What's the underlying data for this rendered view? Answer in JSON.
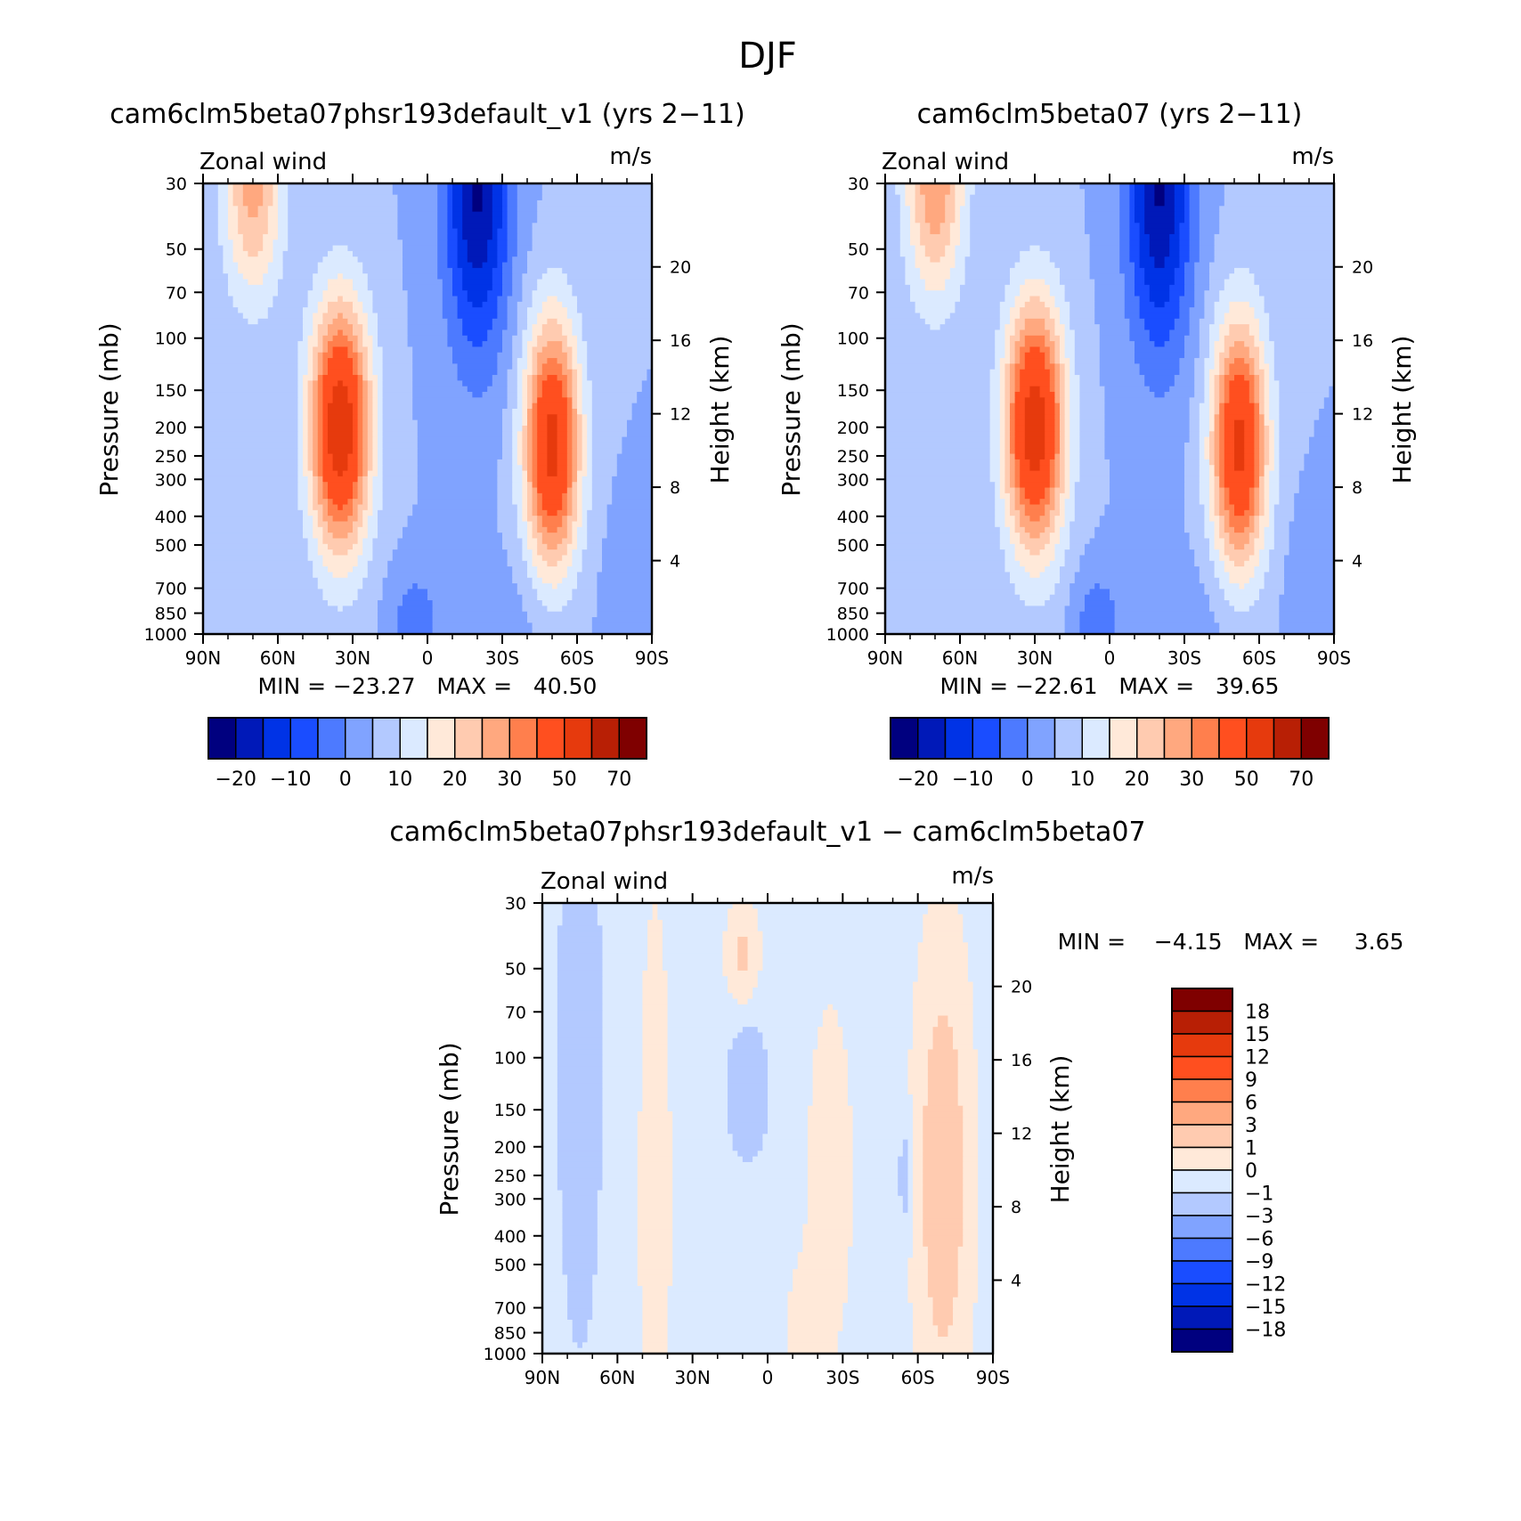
{
  "page_title": "DJF",
  "colors": {
    "full": [
      "#00007f",
      "#0019b8",
      "#0033e6",
      "#1a4dff",
      "#4d7aff",
      "#80a3ff",
      "#b3c9ff",
      "#dbeaff",
      "#ffe9d9",
      "#ffcbb0",
      "#ffa87f",
      "#ff7f4d",
      "#ff4f1f",
      "#e63a0d",
      "#b81f05",
      "#7f0000"
    ],
    "diff": [
      "#00007f",
      "#0019b8",
      "#0033e6",
      "#1a4dff",
      "#4d7aff",
      "#80a3ff",
      "#b3c9ff",
      "#dbeaff",
      "#ffe9d9",
      "#ffcbb0",
      "#ffa87f",
      "#ff7f4d",
      "#ff4f1f",
      "#e63a0d",
      "#b81f05",
      "#7f0000"
    ]
  },
  "chart_data": [
    {
      "type": "heatmap",
      "title": "cam6clm5beta07phsr193default_v1 (yrs 2−11)",
      "variable": "Zonal wind",
      "units": "m/s",
      "xlabel": "",
      "ylabel": "Pressure (mb)",
      "ylabel_right": "Height (km)",
      "x_ticks": [
        "90N",
        "60N",
        "30N",
        "0",
        "30S",
        "60S",
        "90S"
      ],
      "y_ticks": [
        30,
        50,
        70,
        100,
        150,
        200,
        250,
        300,
        400,
        500,
        700,
        850,
        1000
      ],
      "y_right_ticks": [
        20,
        16,
        12,
        8,
        4
      ],
      "ylim": [
        1000,
        30
      ],
      "stats": "MIN = −23.27   MAX =   40.50",
      "min": -23.27,
      "max": 40.5,
      "colorbar_labels": [
        "−20",
        "−10",
        "0",
        "10",
        "20",
        "30",
        "50",
        "70"
      ],
      "jets": [
        {
          "lat": 35,
          "p": 200,
          "peak": 40.5
        },
        {
          "lat": -50,
          "p": 230,
          "peak": 36
        },
        {
          "lat": 70,
          "p": 30,
          "peak": 22
        },
        {
          "lat": -20,
          "p": 30,
          "peak": -23
        }
      ]
    },
    {
      "type": "heatmap",
      "title": "cam6clm5beta07 (yrs 2−11)",
      "variable": "Zonal wind",
      "units": "m/s",
      "xlabel": "",
      "ylabel": "Pressure (mb)",
      "ylabel_right": "Height (km)",
      "x_ticks": [
        "90N",
        "60N",
        "30N",
        "0",
        "30S",
        "60S",
        "90S"
      ],
      "y_ticks": [
        30,
        50,
        70,
        100,
        150,
        200,
        250,
        300,
        400,
        500,
        700,
        850,
        1000
      ],
      "y_right_ticks": [
        20,
        16,
        12,
        8,
        4
      ],
      "ylim": [
        1000,
        30
      ],
      "stats": "MIN = −22.61   MAX =   39.65",
      "min": -22.61,
      "max": 39.65,
      "colorbar_labels": [
        "−20",
        "−10",
        "0",
        "10",
        "20",
        "30",
        "50",
        "70"
      ],
      "jets": [
        {
          "lat": 30,
          "p": 200,
          "peak": 39.6
        },
        {
          "lat": -52,
          "p": 230,
          "peak": 35
        },
        {
          "lat": 70,
          "p": 30,
          "peak": 24
        },
        {
          "lat": -20,
          "p": 30,
          "peak": -22.6
        }
      ]
    },
    {
      "type": "heatmap",
      "title": "cam6clm5beta07phsr193default_v1 − cam6clm5beta07",
      "variable": "Zonal wind",
      "units": "m/s",
      "xlabel": "",
      "ylabel": "Pressure (mb)",
      "ylabel_right": "Height (km)",
      "x_ticks": [
        "90N",
        "60N",
        "30N",
        "0",
        "30S",
        "60S",
        "90S"
      ],
      "y_ticks": [
        30,
        50,
        70,
        100,
        150,
        200,
        250,
        300,
        400,
        500,
        700,
        850,
        1000
      ],
      "y_right_ticks": [
        20,
        16,
        12,
        8,
        4
      ],
      "ylim": [
        1000,
        30
      ],
      "stats": "MIN =    −4.15   MAX =     3.65",
      "min": -4.15,
      "max": 3.65,
      "colorbar_labels": [
        "18",
        "15",
        "12",
        "9",
        "6",
        "3",
        "1",
        "0",
        "−1",
        "−3",
        "−6",
        "−9",
        "−12",
        "−15",
        "−18"
      ]
    }
  ]
}
